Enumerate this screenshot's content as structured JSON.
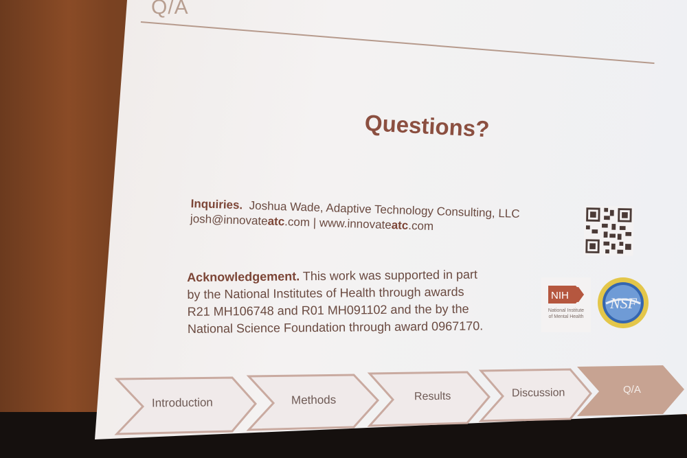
{
  "slide": {
    "title": "Q/A",
    "heading": "Questions?",
    "inquiries": {
      "label": "Inquiries.",
      "contact_line": "Joshua Wade, Adaptive Technology Consulting, LLC",
      "email_pre": "josh@innovate",
      "email_bold": "atc",
      "email_post": ".com",
      "separator": " | ",
      "web_pre": "www.innovate",
      "web_bold": "atc",
      "web_post": ".com"
    },
    "acknowledgement": {
      "label": "Acknowledgement.",
      "lines": [
        "This work was supported in part",
        "by the National Institutes of Health through awards",
        "R21 MH106748 and R01 MH091102 and the by the",
        "National Science Foundation through award 0967170."
      ]
    },
    "logos": {
      "nih_mark": "NIH",
      "nih_subtitle_1": "National Institute",
      "nih_subtitle_2": "of Mental Health",
      "nsf_mark": "NSF"
    },
    "nav": {
      "items": [
        "Introduction",
        "Methods",
        "Results",
        "Discussion",
        "Q/A"
      ],
      "active_index": 4
    },
    "colors": {
      "accent": "#8b4f40",
      "nav_outline": "#c9aaa0",
      "nav_active": "#c7a392"
    }
  }
}
